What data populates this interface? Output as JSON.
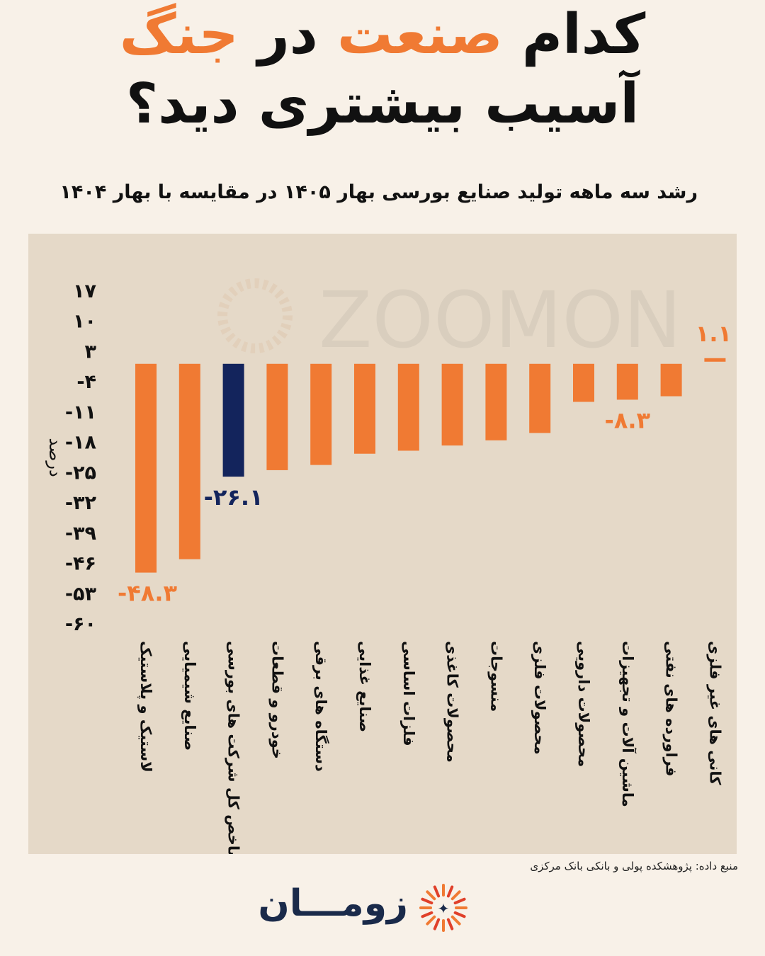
{
  "title": {
    "line1_part1": "کدام",
    "line1_part2": "صنعت",
    "line1_part3": "در",
    "line1_part4": "جنگ",
    "line2": "آسیب بیشتری دید؟"
  },
  "colors": {
    "accent": "#f07a33",
    "highlight_bar": "#13245c",
    "panel": "#e5d9c8",
    "background": "#f8f1e8"
  },
  "chart_data": {
    "type": "bar",
    "title": "رشد سه ماهه تولید صنایع بورسی بهار ۱۴۰۵ در مقایسه با بهار ۱۴۰۴",
    "ylabel": "درصد",
    "xlabel": "",
    "ylim": [
      -60,
      17
    ],
    "yticks": [
      "۱۷",
      "۱۰",
      "۳",
      "-۴",
      "-۱۱",
      "-۱۸",
      "-۲۵",
      "-۳۲",
      "-۳۹",
      "-۴۶",
      "-۵۳",
      "-۶۰"
    ],
    "ytick_values": [
      17,
      10,
      3,
      -4,
      -11,
      -18,
      -25,
      -32,
      -39,
      -46,
      -53,
      -60
    ],
    "grid": false,
    "categories": [
      "لاستیک و پلاستیک",
      "صنایع شیمیایی",
      "شاخص کل شرکت های بورسی",
      "خودرو و قطعات",
      "دستگاه های برقی",
      "صنایع غذایی",
      "فلزات اساسی",
      "محصولات کاغذی",
      "منسوجات",
      "محصولات فلزی",
      "محصولات دارویی",
      "ماشین آلات و تجهیزات",
      "فراورده های نفتی",
      "کانی های غیر فلزی"
    ],
    "values": [
      -48.3,
      -45.2,
      -26.1,
      -24.6,
      -23.4,
      -20.8,
      -20.1,
      -18.9,
      -17.7,
      -16.0,
      -8.8,
      -8.3,
      -7.5,
      1.1
    ],
    "highlight_index": 2,
    "data_labels": [
      {
        "index": 0,
        "text": "-۴۸.۳"
      },
      {
        "index": 2,
        "text": "-۲۶.۱"
      },
      {
        "index": 11,
        "text": "-۸.۳"
      },
      {
        "index": 13,
        "text": "۱.۱"
      }
    ]
  },
  "watermark": "ZOOMON",
  "source": "منبع داده: پژوهشکده پولی و بانکی بانک مرکزی",
  "brand": "زومـــان"
}
